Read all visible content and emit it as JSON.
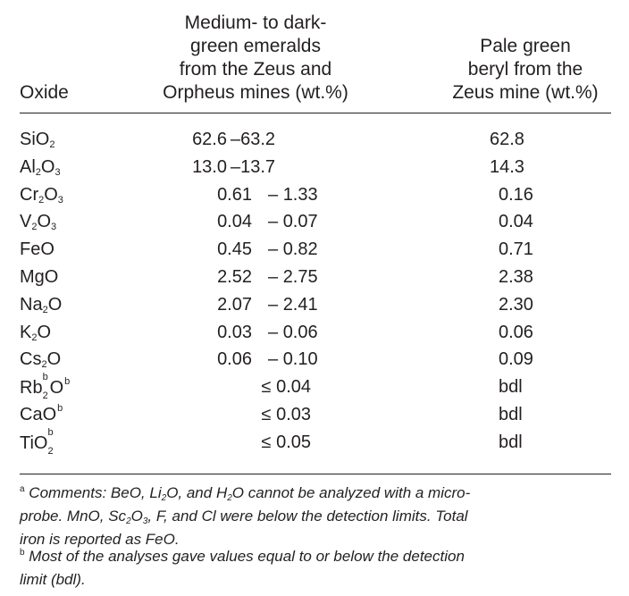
{
  "headers": {
    "oxide": "Oxide",
    "col1": [
      "Medium- to dark-",
      "green emeralds",
      "from the Zeus and",
      "Orpheus mines (wt.%)"
    ],
    "col2": [
      "Pale green",
      "beryl from the",
      "Zeus mine (wt.%)"
    ]
  },
  "rows": [
    {
      "base": "SiO",
      "sub": "2",
      "low": "62.6",
      "dash": "–",
      "high": "63.2",
      "pale": "62.8"
    },
    {
      "base": "Al",
      "sub": "2",
      "mid": "O",
      "sub2": "3",
      "low": "13.0",
      "dash": "–",
      "high": "13.7",
      "pale": "14.3"
    },
    {
      "base": "Cr",
      "sub": "2",
      "mid": "O",
      "sub2": "3",
      "low": "0.61",
      "dash": "–",
      "high": "1.33",
      "pale": "0.16"
    },
    {
      "base": "V",
      "sub": "2",
      "mid": "O",
      "sub2": "3",
      "low": "0.04",
      "dash": "–",
      "high": "0.07",
      "pale": "0.04"
    },
    {
      "base": "FeO",
      "low": "0.45",
      "dash": "–",
      "high": "0.82",
      "pale": "0.71"
    },
    {
      "base": "MgO",
      "low": "2.52",
      "dash": "–",
      "high": "2.75",
      "pale": "2.38"
    },
    {
      "base": "Na",
      "sub": "2",
      "mid": "O",
      "low": "2.07",
      "dash": "–",
      "high": "2.41",
      "pale": "2.30"
    },
    {
      "base": "K",
      "sub": "2",
      "mid": "O",
      "low": "0.03",
      "dash": "–",
      "high": "0.06",
      "pale": "0.06"
    },
    {
      "base": "Cs",
      "sub": "2",
      "mid": "O",
      "low": "0.06",
      "dash": "–",
      "high": "0.10",
      "pale": "0.09"
    },
    {
      "base": "Rb",
      "sub": "2",
      "mid": "O",
      "sup": "b",
      "le": "≤ 0.04",
      "pale": "bdl"
    },
    {
      "base": "CaO",
      "sup": "b",
      "le": "≤ 0.03",
      "pale": "bdl"
    },
    {
      "base": "TiO",
      "sup": "b",
      "sub": "2",
      "le": "≤ 0.05",
      "pale": "bdl"
    }
  ],
  "footnotes": {
    "a_marker": "a",
    "a_p1": " Comments: BeO, Li",
    "a_s1": "2",
    "a_p2": "O, and H",
    "a_s2": "2",
    "a_p3": "O cannot be analyzed with a micro-",
    "a_p4": "probe. MnO, Sc",
    "a_s3": "2",
    "a_p5": "O",
    "a_s4": "3",
    "a_p6": ", F, and Cl were below the detection limits. Total",
    "a_p7": "iron is reported as FeO.",
    "b_marker": "b",
    "b_p1": " Most of the analyses gave values equal to or below the detection",
    "b_p2": "limit (bdl)."
  }
}
